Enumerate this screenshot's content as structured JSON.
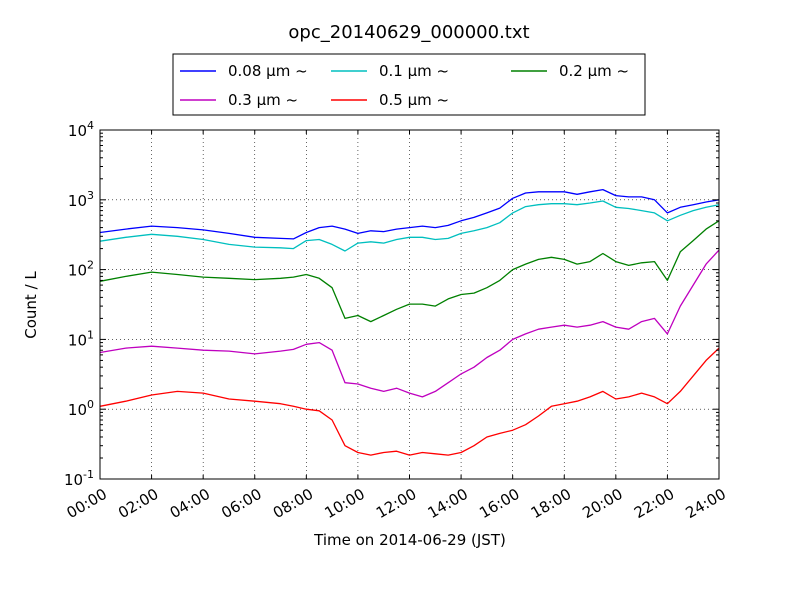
{
  "chart_data": {
    "type": "line",
    "title": "opc_20140629_000000.txt",
    "xlabel": "Time on 2014-06-29 (JST)",
    "ylabel": "Count / L",
    "x_tick_labels": [
      "00:00",
      "02:00",
      "04:00",
      "06:00",
      "08:00",
      "10:00",
      "12:00",
      "14:00",
      "16:00",
      "18:00",
      "20:00",
      "22:00",
      "24:00"
    ],
    "xlim_hours": [
      0,
      24
    ],
    "y_tick_labels": [
      {
        "base": "10",
        "exp": "-1"
      },
      {
        "base": "10",
        "exp": "0"
      },
      {
        "base": "10",
        "exp": "1"
      },
      {
        "base": "10",
        "exp": "2"
      },
      {
        "base": "10",
        "exp": "3"
      },
      {
        "base": "10",
        "exp": "4"
      }
    ],
    "ylim": [
      0.1,
      10000
    ],
    "yscale": "log",
    "grid": true,
    "legend_position": "top-center",
    "series": [
      {
        "name": "0.08 μm ~",
        "color": "#0000ff",
        "x": [
          0,
          1,
          2,
          3,
          4,
          5,
          6,
          7,
          7.5,
          8,
          8.5,
          9,
          9.5,
          10,
          10.5,
          11,
          11.5,
          12,
          12.5,
          13,
          13.5,
          14,
          14.5,
          15,
          15.5,
          16,
          16.5,
          17,
          17.5,
          18,
          18.5,
          19,
          19.5,
          20,
          20.5,
          21,
          21.5,
          22,
          22.5,
          23,
          23.5,
          24
        ],
        "y": [
          340,
          380,
          420,
          400,
          370,
          330,
          290,
          280,
          275,
          340,
          400,
          420,
          380,
          330,
          360,
          350,
          380,
          400,
          420,
          400,
          430,
          500,
          560,
          650,
          760,
          1050,
          1250,
          1300,
          1300,
          1300,
          1200,
          1300,
          1400,
          1150,
          1100,
          1100,
          1000,
          650,
          780,
          850,
          930,
          1000
        ]
      },
      {
        "name": "0.1 μm ~",
        "color": "#00bfbf",
        "x": [
          0,
          1,
          2,
          3,
          4,
          5,
          6,
          7,
          7.5,
          8,
          8.5,
          9,
          9.5,
          10,
          10.5,
          11,
          11.5,
          12,
          12.5,
          13,
          13.5,
          14,
          14.5,
          15,
          15.5,
          16,
          16.5,
          17,
          17.5,
          18,
          18.5,
          19,
          19.5,
          20,
          20.5,
          21,
          21.5,
          22,
          22.5,
          23,
          23.5,
          24
        ],
        "y": [
          255,
          290,
          320,
          300,
          270,
          230,
          210,
          205,
          200,
          260,
          270,
          230,
          185,
          240,
          250,
          240,
          270,
          290,
          290,
          270,
          280,
          330,
          360,
          400,
          470,
          650,
          800,
          850,
          880,
          880,
          850,
          900,
          960,
          780,
          750,
          700,
          650,
          500,
          600,
          700,
          780,
          850
        ]
      },
      {
        "name": "0.2 μm ~",
        "color": "#008000",
        "x": [
          0,
          1,
          2,
          3,
          4,
          5,
          6,
          7,
          7.5,
          8,
          8.5,
          9,
          9.5,
          10,
          10.5,
          11,
          11.5,
          12,
          12.5,
          13,
          13.5,
          14,
          14.5,
          15,
          15.5,
          16,
          16.5,
          17,
          17.5,
          18,
          18.5,
          19,
          19.5,
          20,
          20.5,
          21,
          21.5,
          22,
          22.5,
          23,
          23.5,
          24
        ],
        "y": [
          68,
          80,
          92,
          85,
          78,
          75,
          72,
          75,
          78,
          85,
          75,
          55,
          20,
          22,
          18,
          22,
          27,
          32,
          32,
          30,
          38,
          44,
          46,
          55,
          70,
          100,
          120,
          140,
          150,
          140,
          120,
          130,
          170,
          130,
          115,
          125,
          130,
          70,
          180,
          260,
          380,
          500
        ]
      },
      {
        "name": "0.3 μm ~",
        "color": "#bf00bf",
        "x": [
          0,
          1,
          2,
          3,
          4,
          5,
          6,
          7,
          7.5,
          8,
          8.5,
          9,
          9.5,
          10,
          10.5,
          11,
          11.5,
          12,
          12.5,
          13,
          13.5,
          14,
          14.5,
          15,
          15.5,
          16,
          16.5,
          17,
          17.5,
          18,
          18.5,
          19,
          19.5,
          20,
          20.5,
          21,
          21.5,
          22,
          22.5,
          23,
          23.5,
          24
        ],
        "y": [
          6.5,
          7.5,
          8,
          7.5,
          7,
          6.8,
          6.2,
          6.8,
          7.2,
          8.5,
          9,
          7,
          2.4,
          2.3,
          2.0,
          1.8,
          2.0,
          1.7,
          1.5,
          1.8,
          2.4,
          3.2,
          4.0,
          5.5,
          7,
          10,
          12,
          14,
          15,
          16,
          15,
          16,
          18,
          15,
          14,
          18,
          20,
          12,
          30,
          60,
          120,
          190
        ]
      },
      {
        "name": "0.5 μm ~",
        "color": "#ff0000",
        "x": [
          0,
          1,
          2,
          3,
          4,
          5,
          6,
          7,
          7.5,
          8,
          8.5,
          9,
          9.5,
          10,
          10.5,
          11,
          11.5,
          12,
          12.5,
          13,
          13.5,
          14,
          14.5,
          15,
          15.5,
          16,
          16.5,
          17,
          17.5,
          18,
          18.5,
          19,
          19.5,
          20,
          20.5,
          21,
          21.5,
          22,
          22.5,
          23,
          23.5,
          24
        ],
        "y": [
          1.1,
          1.3,
          1.6,
          1.8,
          1.7,
          1.4,
          1.3,
          1.2,
          1.1,
          1.0,
          0.95,
          0.7,
          0.3,
          0.24,
          0.22,
          0.24,
          0.25,
          0.22,
          0.24,
          0.23,
          0.22,
          0.24,
          0.3,
          0.4,
          0.45,
          0.5,
          0.6,
          0.8,
          1.1,
          1.2,
          1.3,
          1.5,
          1.8,
          1.4,
          1.5,
          1.7,
          1.5,
          1.2,
          1.8,
          3,
          5,
          7.5
        ]
      }
    ]
  }
}
